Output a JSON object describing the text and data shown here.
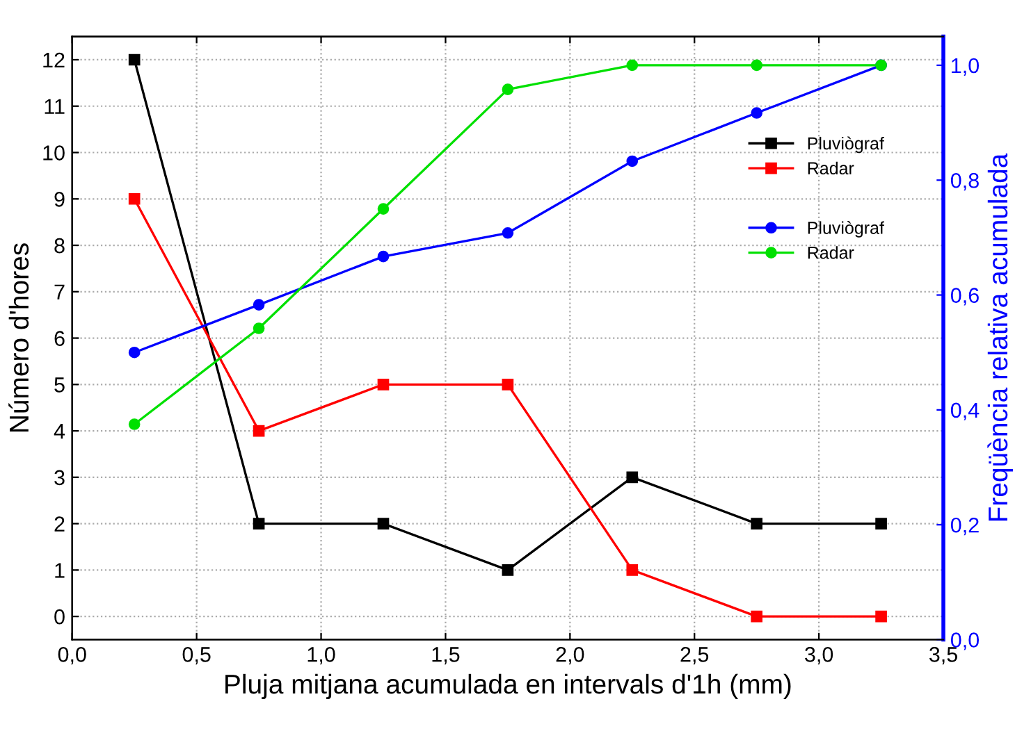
{
  "chart_data": {
    "type": "line",
    "xlabel": "Pluja mitjana acumulada en intervals d'1h (mm)",
    "ylabel": "Número d'hores",
    "y2label": "Freqüència relativa acumulada",
    "x": [
      0.25,
      0.75,
      1.25,
      1.75,
      2.25,
      2.75,
      3.25
    ],
    "series": [
      {
        "name": "Pluviògraf",
        "color": "#000000",
        "marker": "square",
        "values": [
          12,
          2,
          2,
          1,
          3,
          2,
          2
        ]
      },
      {
        "name": "Radar",
        "color": "#ff0000",
        "marker": "square",
        "values": [
          9,
          4,
          5,
          5,
          1,
          0,
          0
        ]
      },
      {
        "name": "Pluviògraf",
        "color": "#0000ff",
        "marker": "circle",
        "axis": "y2",
        "values": [
          0.5,
          0.583,
          0.667,
          0.708,
          0.833,
          0.917,
          1.0
        ]
      },
      {
        "name": "Radar",
        "color": "#00e000",
        "marker": "circle",
        "axis": "y2",
        "values": [
          0.375,
          0.542,
          0.75,
          0.958,
          1.0,
          1.0,
          1.0
        ]
      }
    ],
    "xlim": [
      0,
      3.5
    ],
    "xticks": [
      {
        "value": 0,
        "label": "0,0"
      },
      {
        "value": 0.5,
        "label": "0,5"
      },
      {
        "value": 1,
        "label": "1,0"
      },
      {
        "value": 1.5,
        "label": "1,5"
      },
      {
        "value": 2,
        "label": "2,0"
      },
      {
        "value": 2.5,
        "label": "2,5"
      },
      {
        "value": 3,
        "label": "3,0"
      },
      {
        "value": 3.5,
        "label": "3,5"
      }
    ],
    "ylim": [
      -0.5,
      12.5
    ],
    "yticks": [
      0,
      1,
      2,
      3,
      4,
      5,
      6,
      7,
      8,
      9,
      10,
      11,
      12
    ],
    "y2lim": [
      0,
      1.05
    ],
    "y2ticks": [
      {
        "value": 0,
        "label": "0,0"
      },
      {
        "value": 0.2,
        "label": "0,2"
      },
      {
        "value": 0.4,
        "label": "0,4"
      },
      {
        "value": 0.6,
        "label": "0,6"
      },
      {
        "value": 0.8,
        "label": "0,8"
      },
      {
        "value": 1.0,
        "label": "1,0"
      }
    ],
    "grid": true,
    "legend": "top right",
    "line_style": "solid"
  }
}
